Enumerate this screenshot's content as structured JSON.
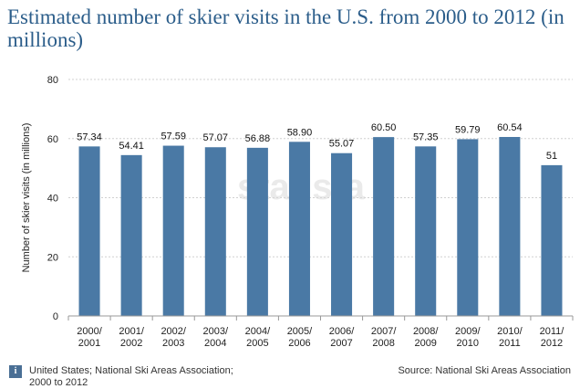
{
  "title": "Estimated number of skier visits in the U.S. from 2000 to 2012 (in millions)",
  "chart_data": {
    "type": "bar",
    "categories": [
      "2000/\n2001",
      "2001/\n2002",
      "2002/\n2003",
      "2003/\n2004",
      "2004/\n2005",
      "2005/\n2006",
      "2006/\n2007",
      "2007/\n2008",
      "2008/\n2009",
      "2009/\n2010",
      "2010/\n2011",
      "2011/\n2012"
    ],
    "values": [
      57.34,
      54.41,
      57.59,
      57.07,
      56.88,
      58.9,
      55.07,
      60.5,
      57.35,
      59.79,
      60.54,
      51
    ],
    "value_labels": [
      "57.34",
      "54.41",
      "57.59",
      "57.07",
      "56.88",
      "58.90",
      "55.07",
      "60.50",
      "57.35",
      "59.79",
      "60.54",
      "51"
    ],
    "ylabel": "Number of skier visits (in millions)",
    "ylim": [
      0,
      80
    ],
    "yticks": [
      0,
      20,
      40,
      60,
      80
    ],
    "grid": true,
    "bar_color": "#4a79a5"
  },
  "watermark": "statista",
  "footer": {
    "info_icon": "info-icon",
    "note": "United States; National Ski Areas Association; 2000 to 2012",
    "source": "Source: National Ski Areas Association"
  }
}
